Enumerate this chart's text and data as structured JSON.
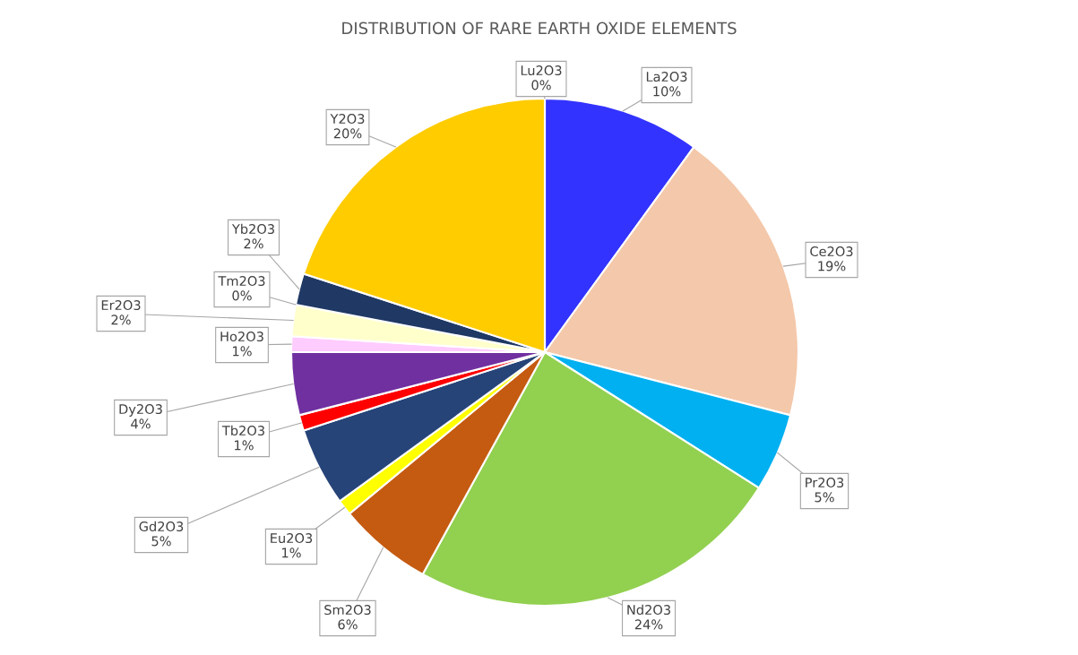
{
  "chart_data": {
    "type": "pie",
    "title": "DISTRIBUTION OF RARE EARTH OXIDE ELEMENTS",
    "categories": [
      "La2O3",
      "Ce2O3",
      "Pr2O3",
      "Nd2O3",
      "Sm2O3",
      "Eu2O3",
      "Gd2O3",
      "Tb2O3",
      "Dy2O3",
      "Ho2O3",
      "Er2O3",
      "Tm2O3",
      "Yb2O3",
      "Y2O3",
      "Lu2O3"
    ],
    "values": [
      10,
      19,
      5,
      24,
      6,
      1,
      5,
      1,
      4,
      1,
      2,
      0,
      2,
      20,
      0
    ],
    "value_labels": [
      "10%",
      "19%",
      "5%",
      "24%",
      "6%",
      "1%",
      "5%",
      "1%",
      "4%",
      "1%",
      "2%",
      "0%",
      "2%",
      "20%",
      "0%"
    ],
    "colors": [
      "#3333ff",
      "#f4c8aa",
      "#00b0f0",
      "#92d050",
      "#c55a11",
      "#ffff00",
      "#264478",
      "#ff0000",
      "#7030a0",
      "#ffccff",
      "#ffffcc",
      "#9dc3e6",
      "#1f3864",
      "#ffcc00",
      "#bdd7ee"
    ]
  }
}
